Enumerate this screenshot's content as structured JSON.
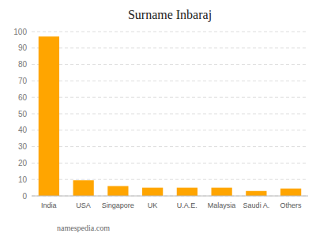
{
  "chart_data": {
    "type": "bar",
    "title": "Surname Inbaraj",
    "categories": [
      "India",
      "USA",
      "Singapore",
      "UK",
      "U.A.E.",
      "Malaysia",
      "Saudi A.",
      "Others"
    ],
    "values": [
      97,
      9.5,
      6,
      5,
      5,
      5,
      3,
      4.5
    ],
    "color": "#FFA500",
    "ylim": [
      0,
      100
    ],
    "yticks": [
      0,
      10,
      20,
      30,
      40,
      50,
      60,
      70,
      80,
      90,
      100
    ],
    "grid": true,
    "annotations": [
      "namespedia.com"
    ]
  }
}
